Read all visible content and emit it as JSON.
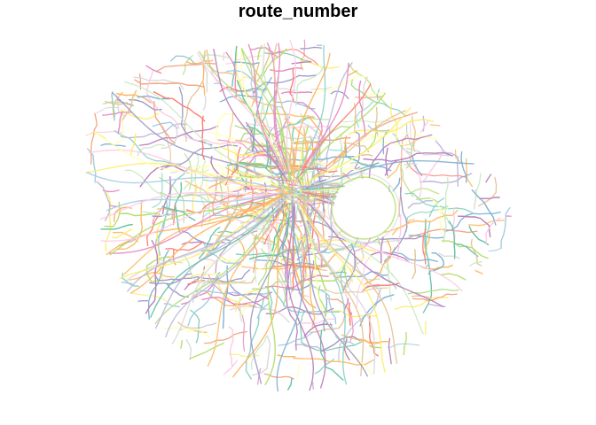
{
  "title": "route_number",
  "palette": [
    "#8DD3C7",
    "#FFFFB3",
    "#BEBADA",
    "#FB8072",
    "#80B1D3",
    "#FDB462",
    "#B3DE69",
    "#FCCDE5",
    "#D9D9D9",
    "#BC80BD",
    "#CCEBC5",
    "#FFED6F",
    "#E78AC3",
    "#A6CEE3",
    "#FDBF6F",
    "#B2DF8A",
    "#F4A582",
    "#9E9AC8",
    "#E5C494",
    "#66C2A5"
  ],
  "background_color": "#FFFFFF",
  "map_type": "route network"
}
